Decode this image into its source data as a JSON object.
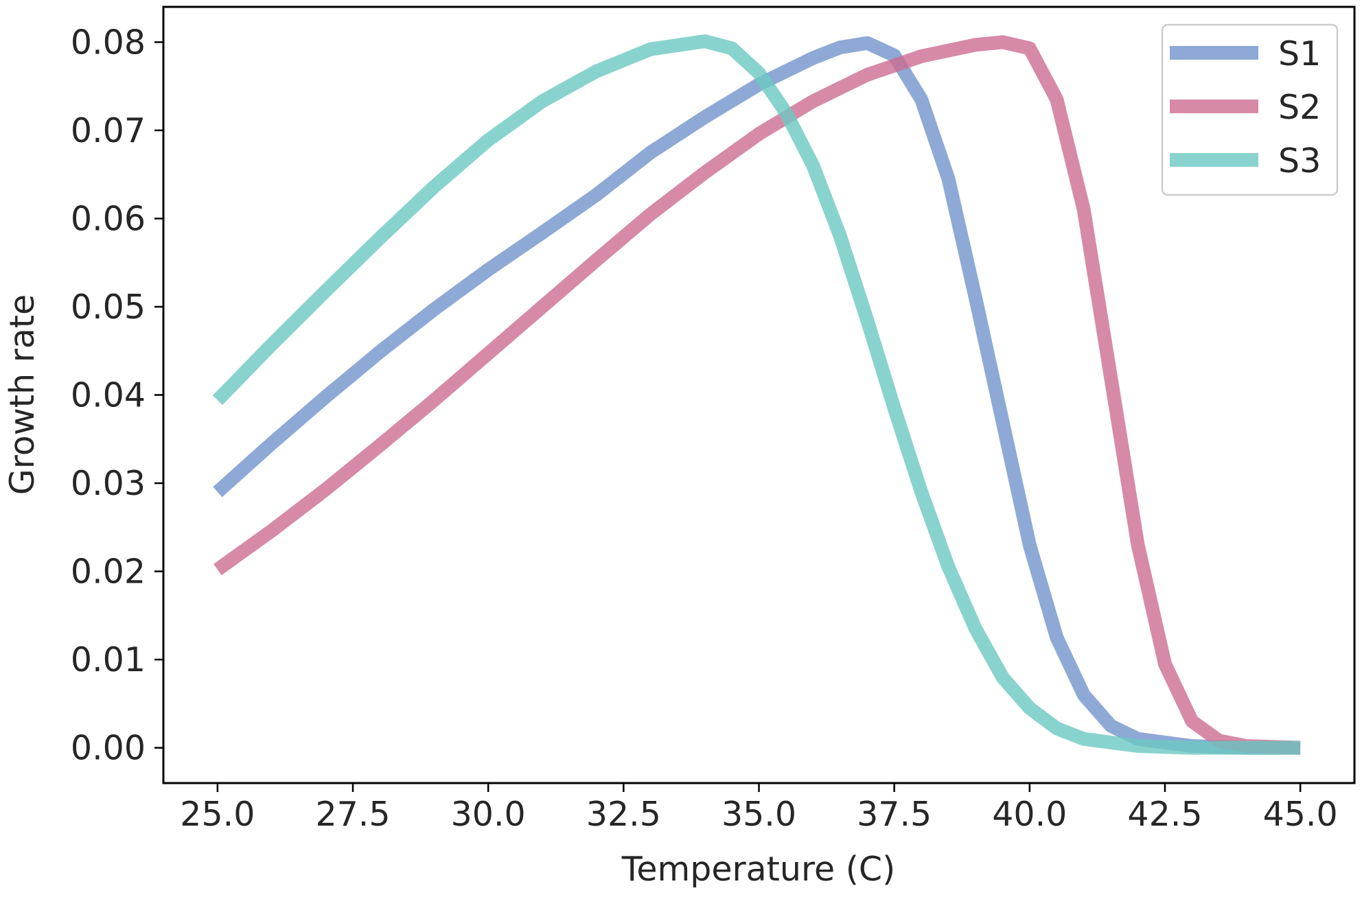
{
  "chart_data": {
    "type": "line",
    "title": "",
    "xlabel": "Temperature (C)",
    "ylabel": "Growth rate",
    "xlim": [
      24.0,
      46.0
    ],
    "ylim": [
      -0.004,
      0.084
    ],
    "xticks": [
      25.0,
      27.5,
      30.0,
      32.5,
      35.0,
      37.5,
      40.0,
      42.5,
      45.0
    ],
    "xtick_labels": [
      "25.0",
      "27.5",
      "30.0",
      "32.5",
      "35.0",
      "37.5",
      "40.0",
      "42.5",
      "45.0"
    ],
    "yticks": [
      0.0,
      0.01,
      0.02,
      0.03,
      0.04,
      0.05,
      0.06,
      0.07,
      0.08
    ],
    "ytick_labels": [
      "0.00",
      "0.01",
      "0.02",
      "0.03",
      "0.04",
      "0.05",
      "0.06",
      "0.07",
      "0.08"
    ],
    "grid": false,
    "legend_position": "top-right",
    "series": [
      {
        "name": "S1",
        "color": "#7293cb",
        "x": [
          25.0,
          26.0,
          27.0,
          28.0,
          29.0,
          30.0,
          31.0,
          32.0,
          33.0,
          34.0,
          35.0,
          36.0,
          36.5,
          37.0,
          37.5,
          38.0,
          38.5,
          39.0,
          39.5,
          40.0,
          40.5,
          41.0,
          41.5,
          42.0,
          43.0,
          44.0,
          45.0
        ],
        "y": [
          0.029,
          0.0345,
          0.0398,
          0.0449,
          0.0497,
          0.0542,
          0.0584,
          0.0627,
          0.0675,
          0.0715,
          0.0752,
          0.0782,
          0.0794,
          0.0799,
          0.0785,
          0.0735,
          0.0645,
          0.051,
          0.037,
          0.023,
          0.0125,
          0.006,
          0.0025,
          0.001,
          0.0002,
          0.0,
          0.0
        ]
      },
      {
        "name": "S2",
        "color": "#cc6d91",
        "x": [
          25.0,
          26.0,
          27.0,
          28.0,
          29.0,
          30.0,
          31.0,
          32.0,
          33.0,
          34.0,
          35.0,
          36.0,
          37.0,
          38.0,
          39.0,
          39.5,
          40.0,
          40.5,
          41.0,
          41.5,
          42.0,
          42.5,
          43.0,
          43.5,
          44.0,
          45.0
        ],
        "y": [
          0.0202,
          0.0246,
          0.0293,
          0.0343,
          0.0394,
          0.0447,
          0.05,
          0.0553,
          0.0605,
          0.0652,
          0.0696,
          0.0733,
          0.0763,
          0.0784,
          0.0797,
          0.08,
          0.0793,
          0.0735,
          0.061,
          0.042,
          0.023,
          0.0095,
          0.003,
          0.0008,
          0.0002,
          0.0
        ]
      },
      {
        "name": "S3",
        "color": "#6cc8c2",
        "x": [
          25.0,
          26.0,
          27.0,
          28.0,
          29.0,
          30.0,
          31.0,
          32.0,
          33.0,
          34.0,
          34.5,
          35.0,
          35.5,
          36.0,
          36.5,
          37.0,
          37.5,
          38.0,
          38.5,
          39.0,
          39.5,
          40.0,
          40.5,
          41.0,
          42.0,
          43.0,
          44.0,
          45.0
        ],
        "y": [
          0.0394,
          0.0457,
          0.0518,
          0.0578,
          0.0636,
          0.0689,
          0.0733,
          0.0767,
          0.0792,
          0.0801,
          0.0793,
          0.0765,
          0.072,
          0.066,
          0.058,
          0.0485,
          0.0385,
          0.029,
          0.0205,
          0.0135,
          0.008,
          0.0045,
          0.0022,
          0.001,
          0.0002,
          0.0,
          0.0,
          0.0
        ]
      }
    ]
  }
}
